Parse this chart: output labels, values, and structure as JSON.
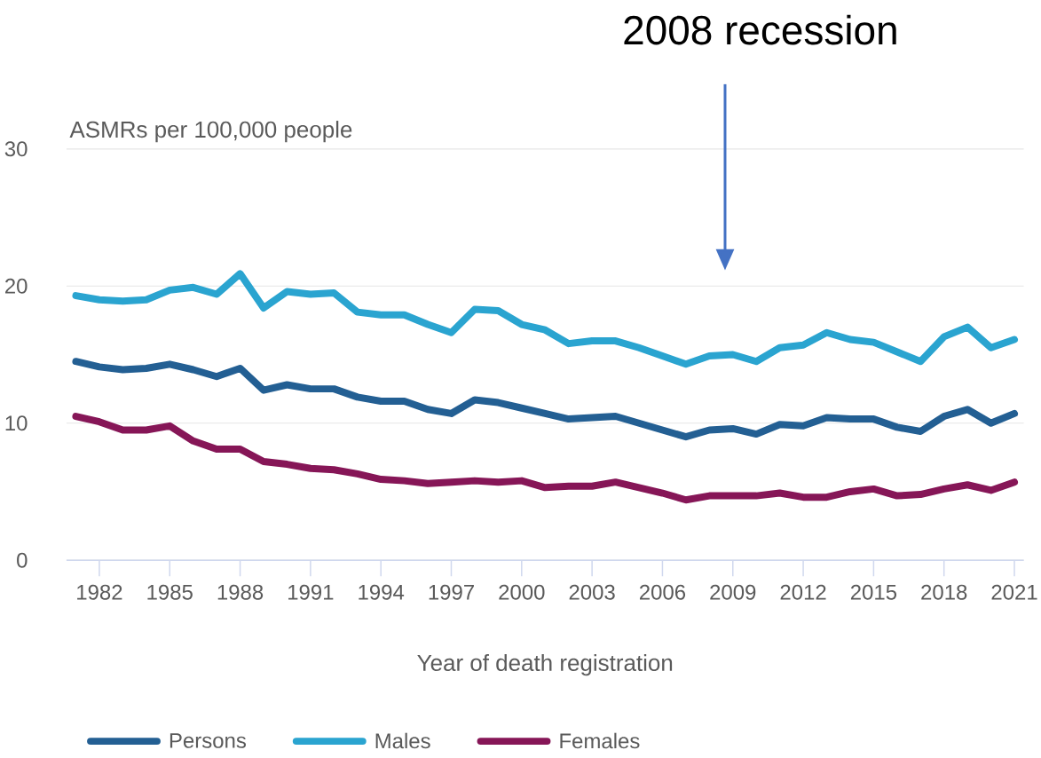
{
  "chart_data": {
    "type": "line",
    "xlabel": "Year of death registration",
    "ylabel": "ASMRs per 100,000 people",
    "x": [
      1981,
      1982,
      1983,
      1984,
      1985,
      1986,
      1987,
      1988,
      1989,
      1990,
      1991,
      1992,
      1993,
      1994,
      1995,
      1996,
      1997,
      1998,
      1999,
      2000,
      2001,
      2002,
      2003,
      2004,
      2005,
      2006,
      2007,
      2008,
      2009,
      2010,
      2011,
      2012,
      2013,
      2014,
      2015,
      2016,
      2017,
      2018,
      2019,
      2020,
      2021
    ],
    "series": [
      {
        "name": "Persons",
        "color": "#235f93",
        "values": [
          14.5,
          14.1,
          13.9,
          14.0,
          14.3,
          13.9,
          13.4,
          14.0,
          12.4,
          12.8,
          12.5,
          12.5,
          11.9,
          11.6,
          11.6,
          11.0,
          10.7,
          11.7,
          11.5,
          11.1,
          10.7,
          10.3,
          10.4,
          10.5,
          10.0,
          9.5,
          9.0,
          9.5,
          9.6,
          9.2,
          9.9,
          9.8,
          10.4,
          10.3,
          10.3,
          9.7,
          9.4,
          10.5,
          11.0,
          10.0,
          10.7
        ]
      },
      {
        "name": "Males",
        "color": "#2aa4d0",
        "values": [
          19.3,
          19.0,
          18.9,
          19.0,
          19.7,
          19.9,
          19.4,
          20.9,
          18.4,
          19.6,
          19.4,
          19.5,
          18.1,
          17.9,
          17.9,
          17.2,
          16.6,
          18.3,
          18.2,
          17.2,
          16.8,
          15.8,
          16.0,
          16.0,
          15.5,
          14.9,
          14.3,
          14.9,
          15.0,
          14.5,
          15.5,
          15.7,
          16.6,
          16.1,
          15.9,
          15.2,
          14.5,
          16.3,
          17.0,
          15.5,
          16.1
        ]
      },
      {
        "name": "Females",
        "color": "#861657",
        "values": [
          10.5,
          10.1,
          9.5,
          9.5,
          9.8,
          8.7,
          8.1,
          8.1,
          7.2,
          7.0,
          6.7,
          6.6,
          6.3,
          5.9,
          5.8,
          5.6,
          5.7,
          5.8,
          5.7,
          5.8,
          5.3,
          5.4,
          5.4,
          5.7,
          5.3,
          4.9,
          4.4,
          4.7,
          4.7,
          4.7,
          4.9,
          4.6,
          4.6,
          5.0,
          5.2,
          4.7,
          4.8,
          5.2,
          5.5,
          5.1,
          5.7
        ]
      }
    ],
    "xlim": [
      1980.6,
      2021.4
    ],
    "ylim": [
      0,
      30
    ],
    "xticks": [
      1982,
      1985,
      1988,
      1991,
      1994,
      1997,
      2000,
      2003,
      2006,
      2009,
      2012,
      2015,
      2018,
      2021
    ],
    "yticks": [
      0,
      10,
      20,
      30
    ],
    "grid": "y",
    "legend": "bottom",
    "marker": "none",
    "line_style": "solid",
    "annotations": [
      "2008 recession"
    ]
  }
}
